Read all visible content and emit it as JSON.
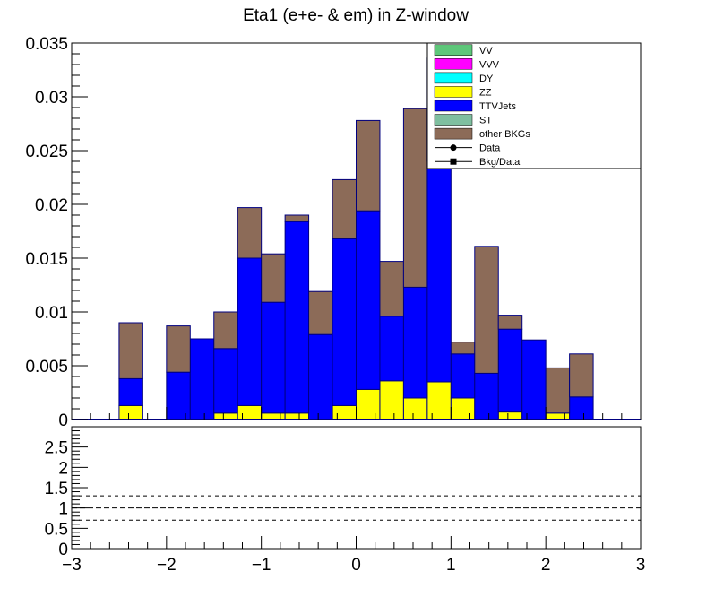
{
  "chart_data": {
    "type": "bar",
    "title": "Eta1 (e+e- & em) in Z-window",
    "stacked": true,
    "bin_edges": [
      -3.0,
      -2.75,
      -2.5,
      -2.25,
      -2.0,
      -1.75,
      -1.5,
      -1.25,
      -1.0,
      -0.75,
      -0.5,
      -0.25,
      0.0,
      0.25,
      0.5,
      0.75,
      1.0,
      1.25,
      1.5,
      1.75,
      2.0,
      2.25,
      2.5,
      2.75,
      3.0
    ],
    "ylim": [
      0,
      0.035
    ],
    "xlim": [
      -3,
      3
    ],
    "y_ticks": [
      "0",
      "0.005",
      "0.01",
      "0.015",
      "0.02",
      "0.025",
      "0.03",
      "0.035"
    ],
    "x_ticks": [
      "−3",
      "−2",
      "−1",
      "0",
      "1",
      "2",
      "3"
    ],
    "series": [
      {
        "name": "VV",
        "color": "#5ec77a",
        "values": [
          0,
          0,
          0,
          0,
          0,
          0,
          0,
          0,
          0,
          0,
          0,
          0,
          0,
          0,
          0,
          0,
          0,
          0,
          0,
          0,
          0,
          0,
          0,
          0
        ]
      },
      {
        "name": "VVV",
        "color": "#ff00ff",
        "values": [
          0,
          0,
          0,
          0,
          0,
          0,
          0,
          0,
          0,
          0,
          0,
          0,
          0,
          0,
          0,
          0,
          0,
          0,
          0,
          0,
          0,
          0,
          0,
          0
        ]
      },
      {
        "name": "DY",
        "color": "#00ffff",
        "values": [
          0,
          0,
          0,
          0,
          0,
          0,
          0,
          0,
          0,
          0,
          0,
          0,
          0,
          0,
          0,
          0,
          0,
          0,
          0,
          0,
          0,
          0,
          0,
          0
        ]
      },
      {
        "name": "ZZ",
        "color": "#ffff00",
        "values": [
          0,
          0,
          0.0013,
          0,
          0,
          0,
          0.0006,
          0.0013,
          0.0006,
          0.0006,
          0,
          0.0013,
          0.0028,
          0.0036,
          0.002,
          0.0035,
          0.002,
          0,
          0.0007,
          0,
          0.0006,
          0,
          0,
          0
        ]
      },
      {
        "name": "TTVJets",
        "color": "#0000ff",
        "values": [
          0,
          0,
          0.0025,
          0,
          0.0044,
          0.0075,
          0.006,
          0.0137,
          0.0103,
          0.0178,
          0.0079,
          0.0155,
          0.0166,
          0.006,
          0.0103,
          0.0205,
          0.0041,
          0.0043,
          0.0077,
          0.0074,
          0,
          0.0021,
          0,
          0
        ]
      },
      {
        "name": "ST",
        "color": "#7fbfa0",
        "values": [
          0,
          0,
          0,
          0,
          0,
          0,
          0,
          0,
          0,
          0,
          0,
          0,
          0,
          0,
          0,
          0,
          0,
          0,
          0,
          0,
          0,
          0,
          0,
          0
        ]
      },
      {
        "name": "other BKGs",
        "color": "#8c6b58",
        "values": [
          0,
          0,
          0.0052,
          0,
          0.0043,
          0,
          0.0034,
          0.0047,
          0.0045,
          0.0006,
          0.004,
          0.0055,
          0.0084,
          0.0051,
          0.0166,
          0.0096,
          0.0011,
          0.0118,
          0.0013,
          0,
          0.0042,
          0.004,
          0,
          0
        ]
      }
    ],
    "legend": {
      "position": "top-right",
      "entries": [
        {
          "label": "VV",
          "style": "box",
          "color": "#5ec77a"
        },
        {
          "label": "VVV",
          "style": "box",
          "color": "#ff00ff"
        },
        {
          "label": "DY",
          "style": "box",
          "color": "#00ffff"
        },
        {
          "label": "ZZ",
          "style": "box",
          "color": "#ffff00"
        },
        {
          "label": "TTVJets",
          "style": "box",
          "color": "#0000ff"
        },
        {
          "label": "ST",
          "style": "box",
          "color": "#7fbfa0"
        },
        {
          "label": "other BKGs",
          "style": "box",
          "color": "#8c6b58"
        },
        {
          "label": "Data",
          "style": "marker-circle",
          "color": "#000000"
        },
        {
          "label": "Bkg/Data",
          "style": "marker-square",
          "color": "#000000"
        }
      ]
    },
    "ratio_panel": {
      "ylim": [
        0,
        3
      ],
      "y_ticks": [
        "0",
        "0.5",
        "1",
        "1.5",
        "2",
        "2.5"
      ],
      "reference_lines": [
        0.7,
        1.0,
        1.3
      ]
    }
  }
}
